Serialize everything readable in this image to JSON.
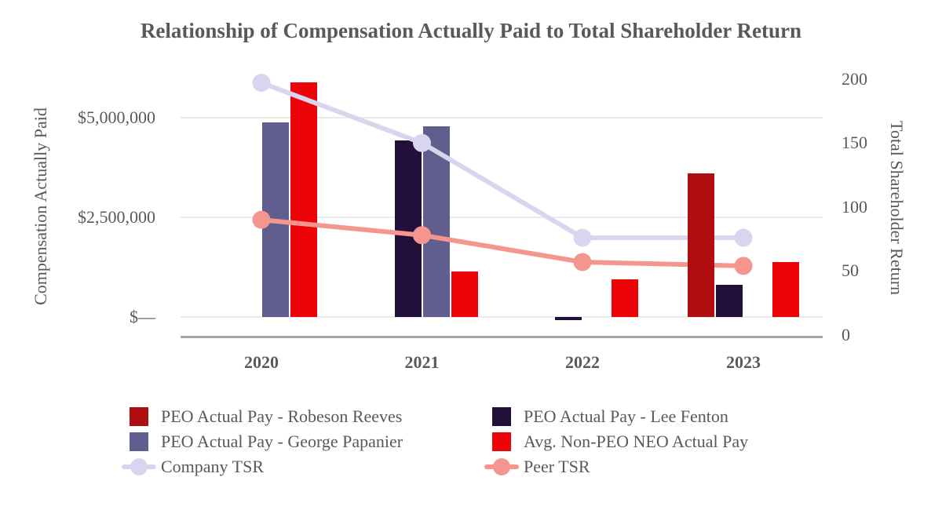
{
  "chart_data": {
    "type": "combo-bar-line",
    "title": "Relationship of Compensation Actually Paid to Total Shareholder Return",
    "categories": [
      "2020",
      "2021",
      "2022",
      "2023"
    ],
    "bar_series": [
      {
        "name": "PEO Actual Pay - Robeson Reeves",
        "color": "#B00D10",
        "values": [
          null,
          null,
          null,
          3600000
        ]
      },
      {
        "name": "PEO Actual Pay - Lee Fenton",
        "color": "#23103A",
        "values": [
          null,
          4420000,
          -80000,
          810000
        ]
      },
      {
        "name": "PEO Actual Pay - George Papanier",
        "color": "#5F5E8E",
        "values": [
          4890000,
          4780000,
          null,
          null
        ]
      },
      {
        "name": "Avg. Non-PEO NEO Actual Pay",
        "color": "#EC0409",
        "values": [
          5880000,
          1150000,
          950000,
          1380000
        ]
      }
    ],
    "line_series": [
      {
        "name": "Company TSR",
        "color": "#D8D6EE",
        "values": [
          197,
          150,
          76,
          76
        ]
      },
      {
        "name": "Peer TSR",
        "color": "#F5968E",
        "values": [
          90,
          78,
          57,
          54
        ]
      }
    ],
    "left_axis": {
      "title": "Compensation Actually Paid",
      "ticks": [
        {
          "label": "$—",
          "value": 0
        },
        {
          "label": "$2,500,000",
          "value": 2500000
        },
        {
          "label": "$5,000,000",
          "value": 5000000
        }
      ]
    },
    "right_axis": {
      "title": "Total Shareholder Return",
      "ticks": [
        {
          "label": "0",
          "value": 0
        },
        {
          "label": "50",
          "value": 50
        },
        {
          "label": "100",
          "value": 100
        },
        {
          "label": "150",
          "value": 150
        },
        {
          "label": "200",
          "value": 200
        }
      ]
    },
    "colors": {
      "grid": "#EAEAEA",
      "axis_line": "#A5A5A5",
      "text": "#595959"
    }
  }
}
